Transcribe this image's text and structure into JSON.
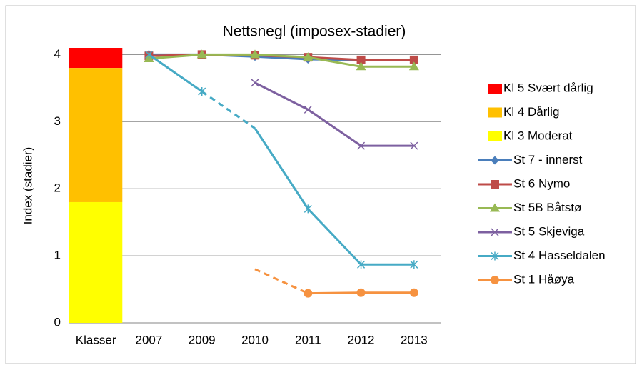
{
  "chart_data": {
    "type": "line",
    "title": "Nettsnegl (imposex-stadier)",
    "y_label": "Index (stadier)",
    "categories": [
      "Klasser",
      "2007",
      "2009",
      "2010",
      "2011",
      "2012",
      "2013"
    ],
    "ylim": [
      0,
      4.1
    ],
    "yticks": [
      0,
      1,
      2,
      3,
      4
    ],
    "grid": true,
    "legend": "right",
    "series": [
      {
        "name": "Kl 5 Svært dårlig",
        "type": "bar",
        "color": "#ff0000",
        "values": [
          0.3,
          null,
          null,
          null,
          null,
          null,
          null
        ]
      },
      {
        "name": "Kl 4 Dårlig",
        "type": "bar",
        "color": "#ffc000",
        "values": [
          2.0,
          null,
          null,
          null,
          null,
          null,
          null
        ]
      },
      {
        "name": "Kl 3 Moderat",
        "type": "bar",
        "color": "#ffff00",
        "values": [
          1.8,
          null,
          null,
          null,
          null,
          null,
          null
        ]
      },
      {
        "name": "St 7 - innerst",
        "type": "line",
        "color": "#4a7ebb",
        "marker": "diamond",
        "values": [
          null,
          4.0,
          4.0,
          3.97,
          3.93,
          3.92,
          3.92
        ]
      },
      {
        "name": "St 6 Nymo",
        "type": "line",
        "color": "#be4b48",
        "marker": "square",
        "values": [
          null,
          3.98,
          4.0,
          3.99,
          3.96,
          3.92,
          3.92
        ]
      },
      {
        "name": "St 5B Båtstø",
        "type": "line",
        "color": "#98b954",
        "marker": "triangle",
        "values": [
          null,
          3.94,
          4.0,
          4.0,
          3.96,
          3.82,
          3.82
        ]
      },
      {
        "name": "St 5 Skjeviga",
        "type": "line",
        "color": "#7d60a0",
        "marker": "x",
        "values": [
          null,
          null,
          null,
          3.58,
          3.18,
          2.64,
          2.64
        ]
      },
      {
        "name": "St 4 Hasseldalen",
        "type": "line",
        "color": "#46aac5",
        "marker": "star",
        "dashed_segments": [
          2
        ],
        "no_marker": [
          3
        ],
        "values": [
          null,
          4.0,
          3.45,
          2.9,
          1.7,
          0.87,
          0.87
        ]
      },
      {
        "name": "St 1 Håøya",
        "type": "line",
        "color": "#f69240",
        "marker": "circle",
        "dashed_segments": [
          3
        ],
        "no_marker": [
          3
        ],
        "values": [
          null,
          null,
          null,
          0.8,
          0.44,
          0.45,
          0.45
        ]
      }
    ]
  }
}
